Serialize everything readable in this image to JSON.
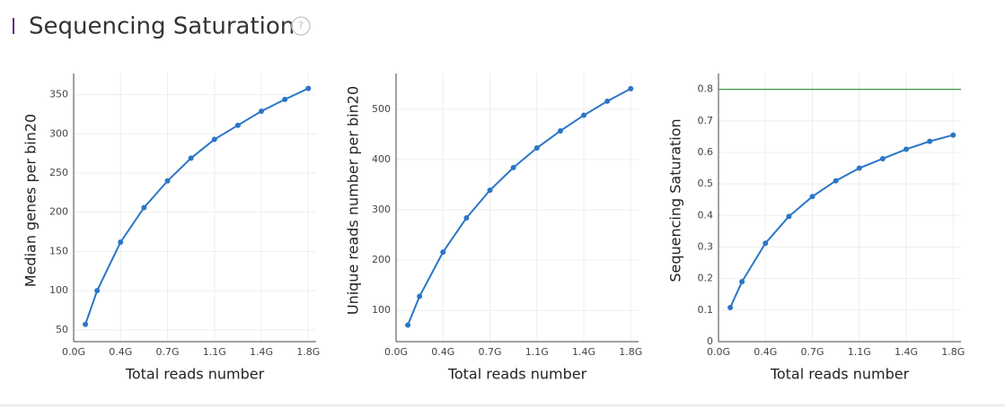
{
  "header": {
    "title": "Sequencing Saturation",
    "help": "?"
  },
  "chart_data": [
    {
      "type": "line",
      "x_label": "Total reads number",
      "y_label": "Median genes per bin20",
      "color": "#2a76c6",
      "grid": true,
      "x": [
        0.09,
        0.18,
        0.36,
        0.54,
        0.72,
        0.9,
        1.08,
        1.26,
        1.44,
        1.62,
        1.8
      ],
      "values": [
        57,
        100,
        162,
        206,
        240,
        269,
        293,
        311,
        329,
        344,
        358
      ],
      "xlim": [
        0,
        1.86
      ],
      "ylim": [
        35,
        377
      ],
      "xticks": [
        {
          "value": 0,
          "label": "0.0G"
        },
        {
          "value": 0.36,
          "label": "0.4G"
        },
        {
          "value": 0.72,
          "label": "0.7G"
        },
        {
          "value": 1.08,
          "label": "1.1G"
        },
        {
          "value": 1.44,
          "label": "1.4G"
        },
        {
          "value": 1.8,
          "label": "1.8G"
        }
      ],
      "yticks": [
        50,
        100,
        150,
        200,
        250,
        300,
        350
      ]
    },
    {
      "type": "line",
      "x_label": "Total reads number",
      "y_label": "Unique reads number per bin20",
      "color": "#2a76c6",
      "grid": true,
      "x": [
        0.09,
        0.18,
        0.36,
        0.54,
        0.72,
        0.9,
        1.08,
        1.26,
        1.44,
        1.62,
        1.8
      ],
      "values": [
        71,
        128,
        216,
        284,
        339,
        384,
        423,
        457,
        488,
        516,
        541
      ],
      "xlim": [
        0,
        1.86
      ],
      "ylim": [
        38,
        571
      ],
      "xticks": [
        {
          "value": 0,
          "label": "0.0G"
        },
        {
          "value": 0.36,
          "label": "0.4G"
        },
        {
          "value": 0.72,
          "label": "0.7G"
        },
        {
          "value": 1.08,
          "label": "1.1G"
        },
        {
          "value": 1.44,
          "label": "1.4G"
        },
        {
          "value": 1.8,
          "label": "1.8G"
        }
      ],
      "yticks": [
        100,
        200,
        300,
        400,
        500
      ]
    },
    {
      "type": "line",
      "x_label": "Total reads number",
      "y_label": "Sequencing Saturation",
      "color": "#2a76c6",
      "grid": true,
      "x": [
        0.09,
        0.18,
        0.36,
        0.54,
        0.72,
        0.9,
        1.08,
        1.26,
        1.44,
        1.62,
        1.8
      ],
      "values": [
        0.108,
        0.19,
        0.312,
        0.397,
        0.46,
        0.51,
        0.55,
        0.58,
        0.61,
        0.635,
        0.655
      ],
      "threshold": {
        "value": 0.8,
        "color": "#3a9a3a"
      },
      "xlim": [
        0,
        1.86
      ],
      "ylim": [
        0,
        0.85
      ],
      "xticks": [
        {
          "value": 0,
          "label": "0.0G"
        },
        {
          "value": 0.36,
          "label": "0.4G"
        },
        {
          "value": 0.72,
          "label": "0.7G"
        },
        {
          "value": 1.08,
          "label": "1.1G"
        },
        {
          "value": 1.44,
          "label": "1.4G"
        },
        {
          "value": 1.8,
          "label": "1.8G"
        }
      ],
      "yticks": [
        0,
        0.1,
        0.2,
        0.3,
        0.4,
        0.5,
        0.6,
        0.7,
        0.8
      ]
    }
  ]
}
